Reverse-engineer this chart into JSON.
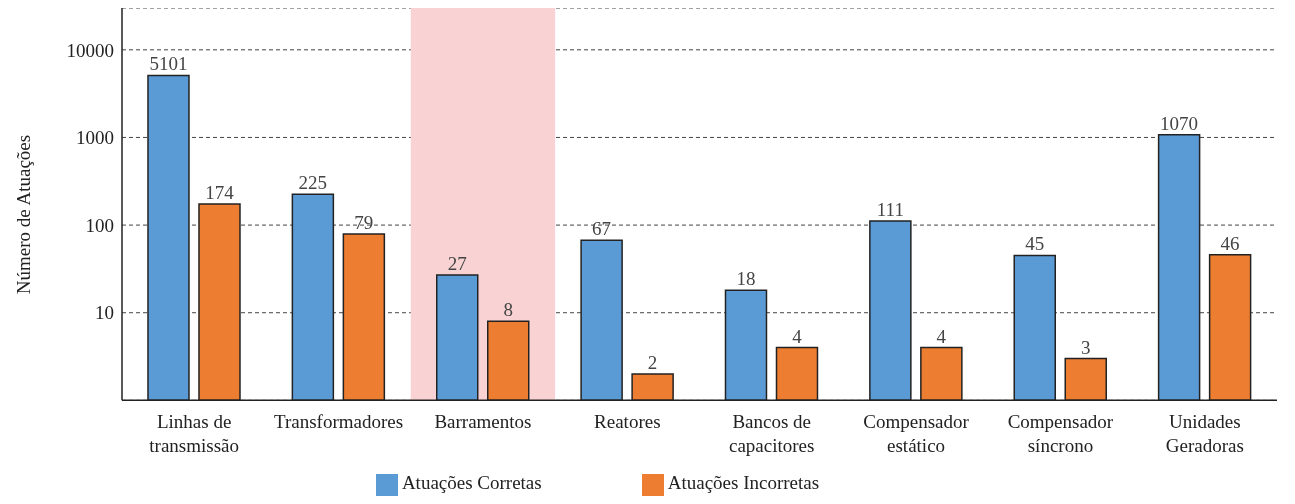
{
  "chart_data": {
    "type": "bar",
    "ylabel": "Número de Atuações",
    "categories": [
      "Linhas de transmissão",
      "Transformadores",
      "Barramentos",
      "Reatores",
      "Bancos de capacitores",
      "Compensador estático",
      "Compensador síncrono",
      "Unidades Geradoras"
    ],
    "series": [
      {
        "name": "Atuações Corretas",
        "color": "#5b9bd5",
        "values": [
          5101,
          225,
          27,
          67,
          18,
          111,
          45,
          1070
        ]
      },
      {
        "name": "Atuações Incorretas",
        "color": "#ed7d31",
        "values": [
          174,
          79,
          8,
          2,
          4,
          4,
          3,
          46
        ]
      }
    ],
    "log": true,
    "ylim": [
      1,
      30000
    ],
    "yticks": [
      {
        "value": 1,
        "label": null
      },
      10,
      100,
      1000,
      10000
    ],
    "grid": "y",
    "legend": "bottom",
    "data_labels": true,
    "bands": [
      {
        "axis": "x",
        "from": "Barramentos",
        "to": "Barramentos",
        "color": "#f9d3d3"
      }
    ]
  }
}
